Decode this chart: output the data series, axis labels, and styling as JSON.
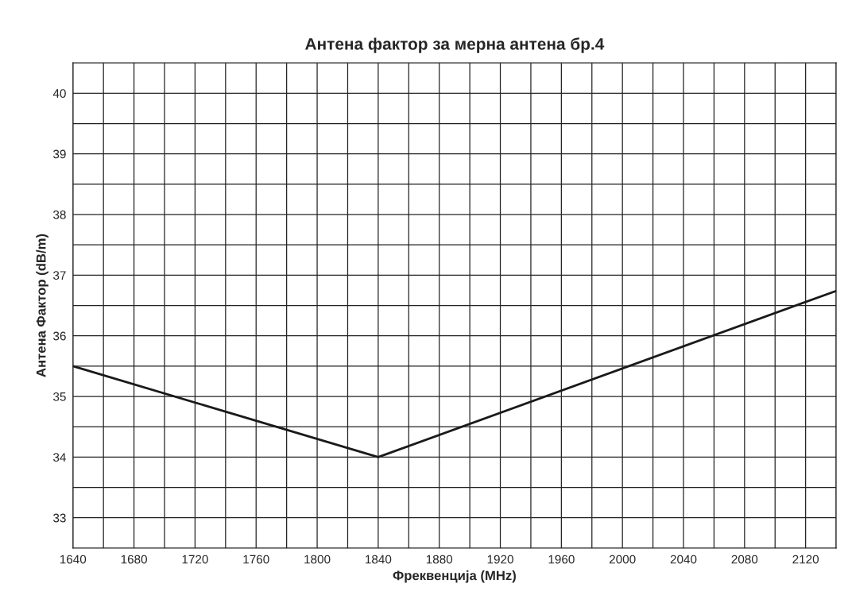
{
  "chart_data": {
    "type": "line",
    "title": "Антена фактор за мерна антена бр.4",
    "xlabel": "Фреквенција (MHz)",
    "ylabel": "Антена Фактор (dB/m)",
    "x": [
      1640,
      1840,
      2140
    ],
    "series": [
      {
        "color": "#1a1a1a",
        "values": [
          35.5,
          34.0,
          36.74
        ]
      }
    ],
    "xlim": [
      1640,
      2140
    ],
    "xticks": [
      1640,
      {
        "value": 1660,
        "label": null
      },
      1680,
      {
        "value": 1700,
        "label": null
      },
      1720,
      {
        "value": 1740,
        "label": null
      },
      1760,
      {
        "value": 1780,
        "label": null
      },
      1800,
      {
        "value": 1820,
        "label": null
      },
      1840,
      {
        "value": 1860,
        "label": null
      },
      1880,
      {
        "value": 1900,
        "label": null
      },
      1920,
      {
        "value": 1940,
        "label": null
      },
      1960,
      {
        "value": 1980,
        "label": null
      },
      2000,
      {
        "value": 2020,
        "label": null
      },
      2040,
      {
        "value": 2060,
        "label": null
      },
      2080,
      {
        "value": 2100,
        "label": null
      },
      2120,
      {
        "value": 2140,
        "label": null
      }
    ],
    "ylim": [
      32.5,
      40.5
    ],
    "yticks": [
      33,
      {
        "value": 33.5,
        "label": null
      },
      34,
      {
        "value": 34.5,
        "label": null
      },
      35,
      {
        "value": 35.5,
        "label": null
      },
      36,
      {
        "value": 36.5,
        "label": null
      },
      37,
      {
        "value": 37.5,
        "label": null
      },
      38,
      {
        "value": 38.5,
        "label": null
      },
      39,
      {
        "value": 39.5,
        "label": null
      },
      40
    ],
    "grid": true,
    "marker": "none",
    "line_style": "solid"
  }
}
